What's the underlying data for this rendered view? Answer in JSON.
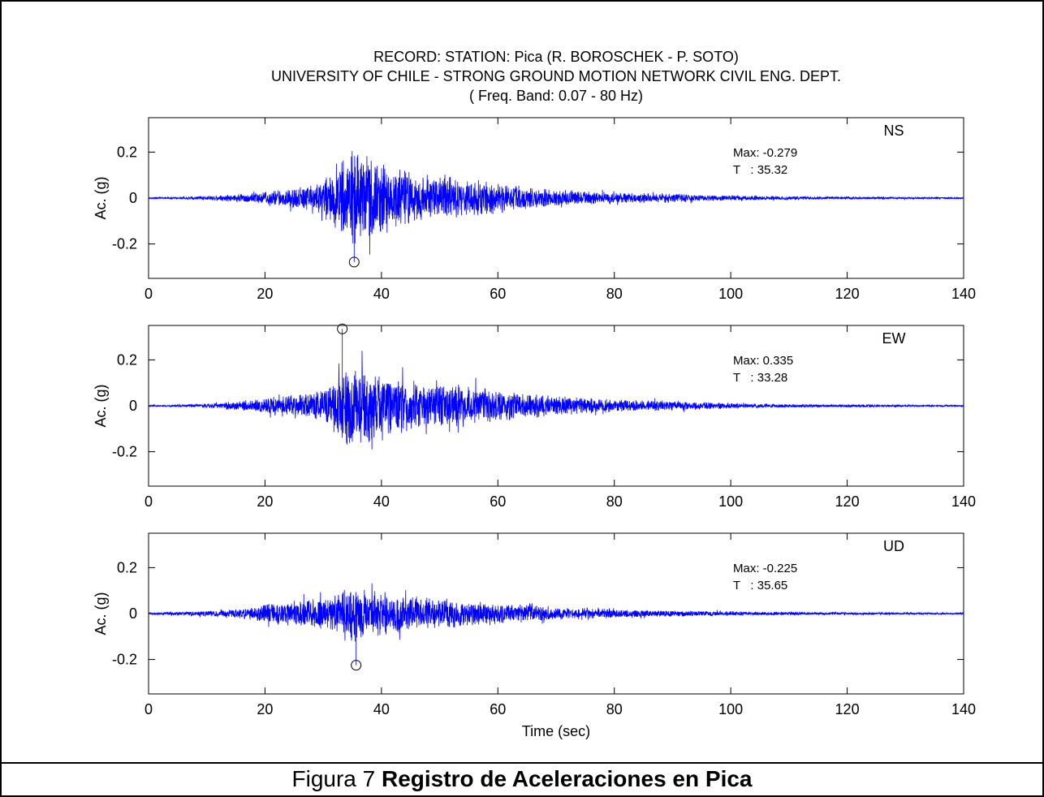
{
  "header": {
    "title_line1": "RECORD: STATION: Pica (R. BOROSCHEK - P. SOTO)",
    "title_line2": "UNIVERSITY OF CHILE - STRONG GROUND MOTION NETWORK CIVIL ENG. DEPT.",
    "title_line3": "( Freq. Band: 0.07 - 80 Hz)"
  },
  "caption": {
    "prefix": "Figura 7",
    "bold": "Registro de Aceleraciones en Pica"
  },
  "colors": {
    "trace": "#0000ff",
    "axes": "#000000"
  },
  "chart_data": [
    {
      "type": "line",
      "component": "NS",
      "ylabel": "Ac. (g)",
      "xlabel": "",
      "xlim": [
        0,
        140
      ],
      "ylim": [
        -0.35,
        0.35
      ],
      "xticks": [
        0,
        20,
        40,
        60,
        80,
        100,
        120,
        140
      ],
      "yticks": [
        -0.2,
        0,
        0.2
      ],
      "ytick_labels": [
        "-0.2",
        "0",
        "0.2"
      ],
      "max_text": "Max: -0.279",
      "t_text": "T   : 35.32",
      "peak": {
        "t": 35.32,
        "value": -0.279
      },
      "grid": false,
      "envelope": [
        [
          0,
          0.003
        ],
        [
          5,
          0.005
        ],
        [
          10,
          0.01
        ],
        [
          15,
          0.018
        ],
        [
          20,
          0.03
        ],
        [
          25,
          0.05
        ],
        [
          30,
          0.08
        ],
        [
          32,
          0.14
        ],
        [
          34,
          0.2
        ],
        [
          36,
          0.22
        ],
        [
          38,
          0.2
        ],
        [
          40,
          0.17
        ],
        [
          45,
          0.12
        ],
        [
          50,
          0.1
        ],
        [
          55,
          0.085
        ],
        [
          60,
          0.07
        ],
        [
          65,
          0.05
        ],
        [
          70,
          0.04
        ],
        [
          80,
          0.025
        ],
        [
          90,
          0.02
        ],
        [
          100,
          0.012
        ],
        [
          110,
          0.008
        ],
        [
          120,
          0.006
        ],
        [
          140,
          0.004
        ]
      ]
    },
    {
      "type": "line",
      "component": "EW",
      "ylabel": "Ac. (g)",
      "xlabel": "",
      "xlim": [
        0,
        140
      ],
      "ylim": [
        -0.35,
        0.35
      ],
      "xticks": [
        0,
        20,
        40,
        60,
        80,
        100,
        120,
        140
      ],
      "yticks": [
        -0.2,
        0,
        0.2
      ],
      "ytick_labels": [
        "-0.2",
        "0",
        "0.2"
      ],
      "max_text": "Max: 0.335",
      "t_text": "T   : 33.28",
      "peak": {
        "t": 33.28,
        "value": 0.335
      },
      "grid": false,
      "envelope": [
        [
          0,
          0.003
        ],
        [
          5,
          0.005
        ],
        [
          10,
          0.01
        ],
        [
          15,
          0.02
        ],
        [
          20,
          0.035
        ],
        [
          25,
          0.05
        ],
        [
          30,
          0.07
        ],
        [
          32,
          0.13
        ],
        [
          34,
          0.2
        ],
        [
          36,
          0.2
        ],
        [
          38,
          0.17
        ],
        [
          40,
          0.15
        ],
        [
          45,
          0.11
        ],
        [
          50,
          0.1
        ],
        [
          55,
          0.09
        ],
        [
          60,
          0.075
        ],
        [
          65,
          0.055
        ],
        [
          70,
          0.045
        ],
        [
          80,
          0.03
        ],
        [
          90,
          0.022
        ],
        [
          100,
          0.012
        ],
        [
          110,
          0.008
        ],
        [
          120,
          0.006
        ],
        [
          140,
          0.004
        ]
      ]
    },
    {
      "type": "line",
      "component": "UD",
      "ylabel": "Ac. (g)",
      "xlabel": "Time (sec)",
      "xlim": [
        0,
        140
      ],
      "ylim": [
        -0.35,
        0.35
      ],
      "xticks": [
        0,
        20,
        40,
        60,
        80,
        100,
        120,
        140
      ],
      "yticks": [
        -0.2,
        0,
        0.2
      ],
      "ytick_labels": [
        "-0.2",
        "0",
        "0.2"
      ],
      "max_text": "Max: -0.225",
      "t_text": "T   : 35.65",
      "peak": {
        "t": 35.65,
        "value": -0.225
      },
      "grid": false,
      "envelope": [
        [
          0,
          0.004
        ],
        [
          5,
          0.008
        ],
        [
          10,
          0.012
        ],
        [
          15,
          0.02
        ],
        [
          18,
          0.035
        ],
        [
          20,
          0.045
        ],
        [
          25,
          0.06
        ],
        [
          30,
          0.075
        ],
        [
          33,
          0.1
        ],
        [
          35,
          0.13
        ],
        [
          37,
          0.12
        ],
        [
          40,
          0.1
        ],
        [
          45,
          0.08
        ],
        [
          50,
          0.07
        ],
        [
          55,
          0.06
        ],
        [
          60,
          0.05
        ],
        [
          65,
          0.04
        ],
        [
          70,
          0.03
        ],
        [
          80,
          0.02
        ],
        [
          90,
          0.014
        ],
        [
          100,
          0.01
        ],
        [
          110,
          0.007
        ],
        [
          120,
          0.006
        ],
        [
          140,
          0.004
        ]
      ]
    }
  ]
}
